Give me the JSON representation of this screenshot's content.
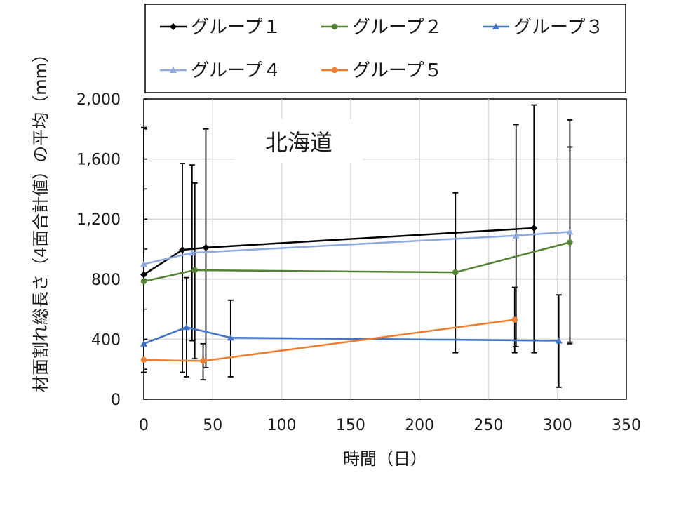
{
  "chart_data": {
    "type": "line",
    "annotation": "北海道",
    "xlabel": "時間（日）",
    "ylabel": "材面割れ総長さ（4面合計値）の平均（mm）",
    "xlim": [
      0,
      350
    ],
    "ylim": [
      0,
      2000
    ],
    "x_ticks": [
      0,
      50,
      100,
      150,
      200,
      250,
      300,
      350
    ],
    "y_ticks": [
      0,
      400,
      800,
      1200,
      1600,
      2000
    ],
    "y_tick_labels": [
      "0",
      "400",
      "800",
      "1,200",
      "1,600",
      "2,000"
    ],
    "grid": "vertical and horizontal",
    "legend_position": "top",
    "series": [
      {
        "name": "グループ１",
        "color": "#000000",
        "marker": "diamond",
        "points": [
          {
            "x": 0,
            "y": 830,
            "lo": 180,
            "hi": 1810
          },
          {
            "x": 28,
            "y": 995,
            "lo": 180,
            "hi": 1570
          },
          {
            "x": 45,
            "y": 1010,
            "lo": 210,
            "hi": 1800
          },
          {
            "x": 283,
            "y": 1140,
            "lo": 310,
            "hi": 1960
          }
        ]
      },
      {
        "name": "グループ２",
        "color": "#548235",
        "marker": "circle",
        "points": [
          {
            "x": 0,
            "y": 785
          },
          {
            "x": 37,
            "y": 860,
            "lo": 270,
            "hi": 1440
          },
          {
            "x": 226,
            "y": 845,
            "lo": 310,
            "hi": 1375
          },
          {
            "x": 309,
            "y": 1045,
            "lo": 380,
            "hi": 1680
          }
        ]
      },
      {
        "name": "グループ３",
        "color": "#4472C4",
        "marker": "triangle",
        "points": [
          {
            "x": 0,
            "y": 370
          },
          {
            "x": 31,
            "y": 480,
            "lo": 150,
            "hi": 810
          },
          {
            "x": 63,
            "y": 410,
            "lo": 150,
            "hi": 660
          },
          {
            "x": 301,
            "y": 390,
            "lo": 80,
            "hi": 695
          }
        ]
      },
      {
        "name": "グループ４",
        "color": "#8FAADC",
        "marker": "triangle",
        "points": [
          {
            "x": 0,
            "y": 900
          },
          {
            "x": 35,
            "y": 975,
            "lo": 390,
            "hi": 1560
          },
          {
            "x": 270,
            "y": 1090,
            "lo": 350,
            "hi": 1830
          },
          {
            "x": 309,
            "y": 1115,
            "lo": 370,
            "hi": 1860
          }
        ]
      },
      {
        "name": "グループ５",
        "color": "#ED7D31",
        "marker": "circle",
        "points": [
          {
            "x": 0,
            "y": 262
          },
          {
            "x": 43,
            "y": 255,
            "lo": 130,
            "hi": 370
          },
          {
            "x": 269,
            "y": 530,
            "lo": 310,
            "hi": 745
          }
        ]
      }
    ]
  }
}
